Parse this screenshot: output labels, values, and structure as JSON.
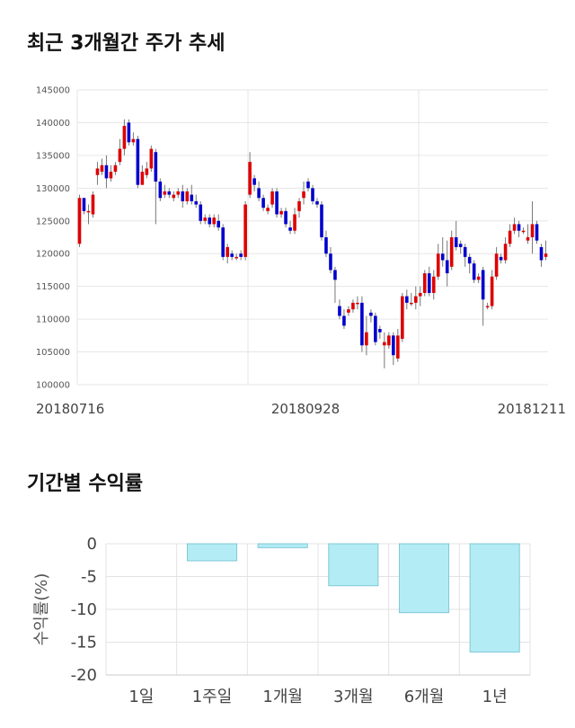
{
  "section1": {
    "title": "최근 3개월간 주가 추세"
  },
  "section2": {
    "title": "기간별 수익률"
  },
  "chart_data": [
    {
      "type": "candlestick",
      "title": "최근 3개월간 주가 추세",
      "ylim": [
        100000,
        145000
      ],
      "y_ticks": [
        100000,
        105000,
        110000,
        115000,
        120000,
        125000,
        130000,
        135000,
        140000,
        145000
      ],
      "x_tick_labels": [
        "20180716",
        "20180928",
        "20181211"
      ],
      "grid": true,
      "up_color": "#dd0000",
      "down_color": "#0000cc",
      "series": [
        [
          121500,
          128500,
          121000,
          129000
        ],
        [
          128500,
          126500,
          126000,
          128500
        ],
        [
          126500,
          126500,
          124500,
          127500
        ],
        [
          126000,
          129000,
          125500,
          129500
        ],
        [
          132000,
          133000,
          130500,
          134000
        ],
        [
          132500,
          133500,
          132000,
          134500
        ],
        [
          133500,
          131500,
          130000,
          135000
        ],
        [
          131500,
          132500,
          131000,
          133500
        ],
        [
          132500,
          133500,
          132000,
          134000
        ],
        [
          134000,
          136000,
          133500,
          137500
        ],
        [
          136000,
          139500,
          135000,
          140500
        ],
        [
          140000,
          137000,
          136500,
          140500
        ],
        [
          137000,
          137500,
          136500,
          138500
        ],
        [
          137500,
          130500,
          130000,
          138000
        ],
        [
          130500,
          132500,
          130500,
          133500
        ],
        [
          132000,
          133000,
          131500,
          134000
        ],
        [
          133000,
          136000,
          132500,
          136500
        ],
        [
          135500,
          131000,
          124500,
          136000
        ],
        [
          131000,
          128500,
          128000,
          131500
        ],
        [
          129000,
          129500,
          128500,
          130500
        ],
        [
          129500,
          129000,
          128500,
          130000
        ],
        [
          128500,
          129000,
          128000,
          129500
        ],
        [
          129000,
          129500,
          128500,
          130000
        ],
        [
          129500,
          128000,
          127000,
          130500
        ],
        [
          128000,
          129500,
          127500,
          130000
        ],
        [
          129000,
          128000,
          127500,
          130500
        ],
        [
          128000,
          127500,
          127000,
          129000
        ],
        [
          127500,
          125000,
          124500,
          128000
        ],
        [
          125000,
          125500,
          124500,
          126000
        ],
        [
          125500,
          124500,
          124000,
          126000
        ],
        [
          124500,
          125500,
          124000,
          126000
        ],
        [
          125000,
          124000,
          123500,
          126000
        ],
        [
          124000,
          119500,
          119000,
          124500
        ],
        [
          119500,
          121000,
          118500,
          121500
        ],
        [
          120000,
          119500,
          119000,
          120500
        ],
        [
          119500,
          119500,
          119000,
          120000
        ],
        [
          120000,
          119500,
          119000,
          120500
        ],
        [
          119500,
          127500,
          119000,
          128000
        ],
        [
          129000,
          134000,
          128500,
          135500
        ],
        [
          131500,
          130500,
          129500,
          132000
        ],
        [
          130000,
          128500,
          128000,
          131000
        ],
        [
          128500,
          127000,
          126500,
          129000
        ],
        [
          126500,
          127000,
          126000,
          127500
        ],
        [
          127500,
          129500,
          127000,
          130000
        ],
        [
          129500,
          126000,
          125500,
          130000
        ],
        [
          126000,
          126500,
          125500,
          127000
        ],
        [
          126500,
          124500,
          124000,
          127000
        ],
        [
          124000,
          123500,
          123000,
          125000
        ],
        [
          123500,
          126000,
          123000,
          127000
        ],
        [
          126500,
          128000,
          125500,
          128500
        ],
        [
          128500,
          129500,
          127500,
          131000
        ],
        [
          131000,
          130000,
          129500,
          131500
        ],
        [
          130000,
          128000,
          127500,
          130500
        ],
        [
          128000,
          127500,
          127000,
          128500
        ],
        [
          127500,
          122500,
          122000,
          128000
        ],
        [
          122500,
          120000,
          119500,
          123500
        ],
        [
          120000,
          117500,
          117000,
          121000
        ],
        [
          117500,
          116000,
          112500,
          118000
        ],
        [
          112000,
          110500,
          110000,
          113000
        ],
        [
          110500,
          109000,
          108500,
          111500
        ],
        [
          111000,
          111500,
          110500,
          112000
        ],
        [
          111500,
          112500,
          111000,
          113000
        ],
        [
          112500,
          112500,
          111500,
          113500
        ],
        [
          112500,
          106000,
          105000,
          113500
        ],
        [
          106000,
          108000,
          104500,
          110500
        ],
        [
          111000,
          110500,
          109500,
          111500
        ],
        [
          110500,
          106500,
          106000,
          111000
        ],
        [
          108500,
          108000,
          107000,
          109000
        ],
        [
          106000,
          106500,
          102500,
          108000
        ],
        [
          106000,
          107500,
          105500,
          108000
        ],
        [
          107500,
          104500,
          103000,
          108000
        ],
        [
          104000,
          107500,
          103500,
          108500
        ],
        [
          107000,
          113500,
          106500,
          114000
        ],
        [
          113500,
          112500,
          111500,
          114500
        ],
        [
          112500,
          112500,
          112000,
          114000
        ],
        [
          112500,
          113500,
          111500,
          115000
        ],
        [
          113500,
          114000,
          112000,
          115000
        ],
        [
          114000,
          117000,
          113500,
          117500
        ],
        [
          117000,
          114000,
          113500,
          118000
        ],
        [
          114000,
          116500,
          113000,
          117500
        ],
        [
          116500,
          120000,
          116000,
          121500
        ],
        [
          120000,
          119000,
          118000,
          122500
        ],
        [
          119000,
          117000,
          115000,
          122000
        ],
        [
          118000,
          122500,
          117500,
          123500
        ],
        [
          122500,
          121000,
          120500,
          125000
        ],
        [
          121500,
          121000,
          120000,
          122000
        ],
        [
          121000,
          119500,
          118000,
          121500
        ],
        [
          119500,
          118500,
          117000,
          120000
        ],
        [
          118500,
          116000,
          115500,
          119000
        ],
        [
          116000,
          116500,
          115500,
          117000
        ],
        [
          117500,
          113000,
          109000,
          118000
        ],
        [
          112000,
          112000,
          111500,
          112500
        ],
        [
          112000,
          116500,
          111500,
          117500
        ],
        [
          116500,
          120000,
          116000,
          121000
        ],
        [
          119500,
          119000,
          118500,
          120000
        ],
        [
          119000,
          121500,
          118500,
          122500
        ],
        [
          121500,
          123500,
          121000,
          124500
        ],
        [
          123500,
          124500,
          123000,
          125500
        ],
        [
          124500,
          123500,
          122500,
          125000
        ],
        [
          123500,
          123500,
          123000,
          124000
        ],
        [
          122000,
          122500,
          121500,
          124500
        ],
        [
          122500,
          124500,
          120000,
          128000
        ],
        [
          124500,
          122000,
          121500,
          125000
        ],
        [
          121000,
          119000,
          118000,
          121500
        ],
        [
          119500,
          120000,
          119000,
          122000
        ]
      ]
    },
    {
      "type": "bar",
      "title": "기간별 수익률",
      "ylabel": "수익률(%)",
      "categories": [
        "1일",
        "1주일",
        "1개월",
        "3개월",
        "6개월",
        "1년"
      ],
      "values": [
        0,
        -2.6,
        -0.6,
        -6.4,
        -10.5,
        -16.5
      ],
      "ylim": [
        -20,
        0
      ],
      "y_ticks": [
        0,
        -5,
        -10,
        -15,
        -20
      ],
      "grid": true,
      "bar_color": "#b3ecf4"
    }
  ]
}
